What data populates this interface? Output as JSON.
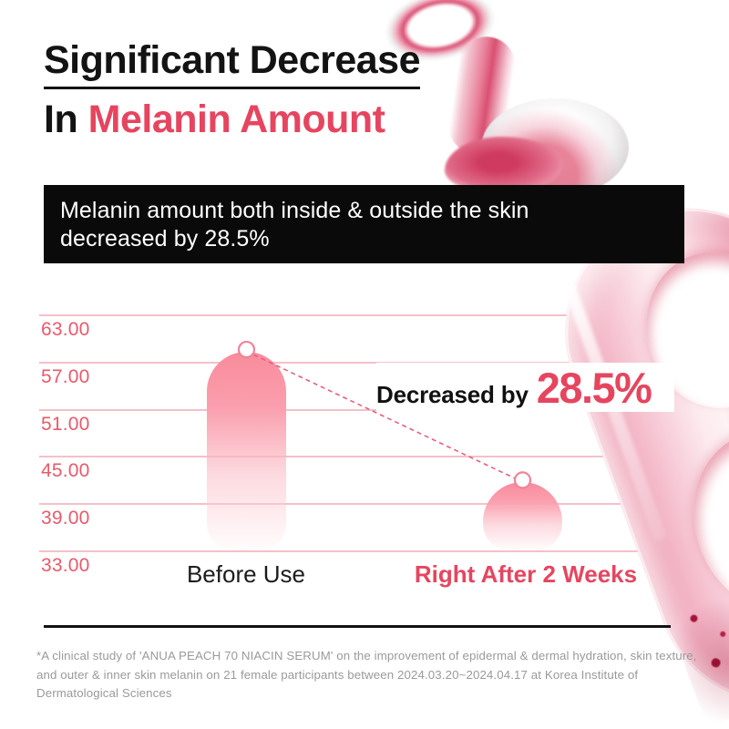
{
  "colors": {
    "accent_pink": "#e6455f",
    "tick_pink": "#e9596c",
    "gridline_pink": "#f4c0ca",
    "bar_top_pink": "#f98b9c",
    "dashed_line_pink": "#e4607c",
    "banner_bg": "#0a0a0a",
    "footnote_gray": "#9a9a9a"
  },
  "title": {
    "line1": "Significant Decrease",
    "line2_prefix": "In ",
    "line2_highlight": "Melanin Amount"
  },
  "banner": {
    "line1": "Melanin amount both inside & outside the skin",
    "line2": "decreased by 28.5%"
  },
  "annotation": {
    "prefix": "Decreased by",
    "value": "28.5%"
  },
  "chart_data": {
    "type": "bar",
    "categories": [
      "Before Use",
      "Right After 2 Weeks"
    ],
    "values": [
      58.3,
      41.7
    ],
    "decrease_percent": "28.5%",
    "ylim": [
      33,
      63
    ],
    "ytick_values": [
      63,
      57,
      51,
      45,
      39,
      33
    ],
    "ytick_labels": [
      "63.00",
      "57.00",
      "51.00",
      "45.00",
      "39.00",
      "33.00"
    ],
    "grid": true,
    "legend": "none",
    "annotation": "Decreased by 28.5%"
  },
  "xaxis": {
    "before_label": "Before Use",
    "after_label_prefix": "Right After ",
    "after_label_bold": "2 Weeks"
  },
  "footnote": {
    "line1": "*A clinical study of 'ANUA PEACH 70 NIACIN SERUM' on the improvement of epidermal & dermal hydration, skin texture,",
    "line2": "and outer & inner skin melanin on 21 female participants between 2024.03.20~2024.04.17 at Korea Institute of Dermatological Sciences"
  }
}
